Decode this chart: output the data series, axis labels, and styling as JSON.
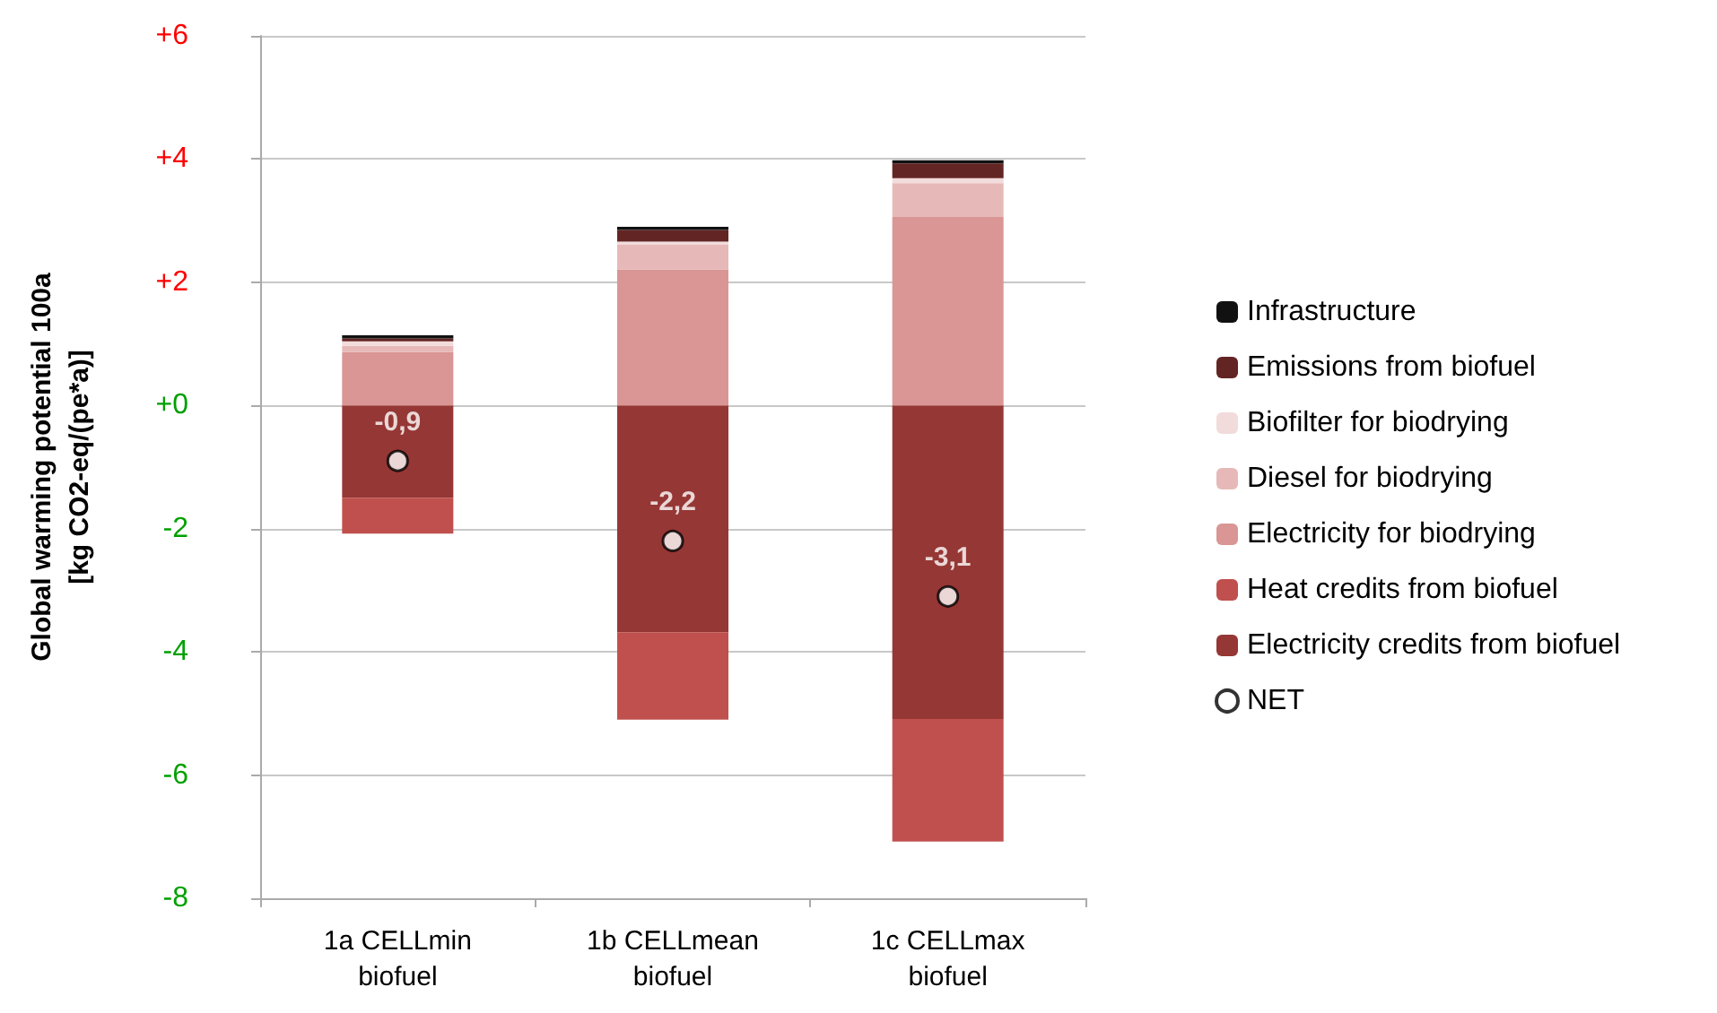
{
  "chart_data": {
    "type": "bar",
    "stacked": true,
    "ylabel": "Global warming potential 100a\n[kg CO2-eq/(pe*a)]",
    "categories": [
      "1a CELLmin\nbiofuel",
      "1b CELLmean\nbiofuel",
      "1c CELLmax\nbiofuel"
    ],
    "series": [
      {
        "name": "Electricity credits from biofuel",
        "color": "#953735",
        "values": [
          -1.5,
          -3.68,
          -5.09
        ]
      },
      {
        "name": "Heat credits from biofuel",
        "color": "#c0504d",
        "values": [
          -0.58,
          -1.42,
          -1.99
        ]
      },
      {
        "name": "Electricity for biodrying",
        "color": "#d99694",
        "values": [
          0.87,
          2.21,
          3.06
        ]
      },
      {
        "name": "Diesel for biodrying",
        "color": "#e6b9b8",
        "values": [
          0.1,
          0.4,
          0.55
        ]
      },
      {
        "name": "Biofilter for biodrying",
        "color": "#f2dcdb",
        "values": [
          0.07,
          0.05,
          0.08
        ]
      },
      {
        "name": "Emissions from biofuel",
        "color": "#632523",
        "values": [
          0.05,
          0.19,
          0.24
        ]
      },
      {
        "name": "Infrastructure",
        "color": "#111111",
        "values": [
          0.05,
          0.05,
          0.05
        ]
      },
      {
        "name": "NET",
        "type": "scatter",
        "color": "#ffffff",
        "marker": "circle",
        "values": [
          -0.9,
          -2.2,
          -3.1
        ],
        "value_labels": [
          "-0,9",
          "-2,2",
          "-3,1"
        ]
      }
    ],
    "ylim": [
      -8,
      6
    ],
    "yticks": [
      {
        "value": 6,
        "label": "+6"
      },
      {
        "value": 4,
        "label": "+4"
      },
      {
        "value": 2,
        "label": "+2"
      },
      {
        "value": 0,
        "label": "+0"
      },
      {
        "value": -2,
        "label": "-2"
      },
      {
        "value": -4,
        "label": "-4"
      },
      {
        "value": -6,
        "label": "-6"
      },
      {
        "value": -8,
        "label": "-8"
      }
    ],
    "grid": "y",
    "legend": "right"
  }
}
